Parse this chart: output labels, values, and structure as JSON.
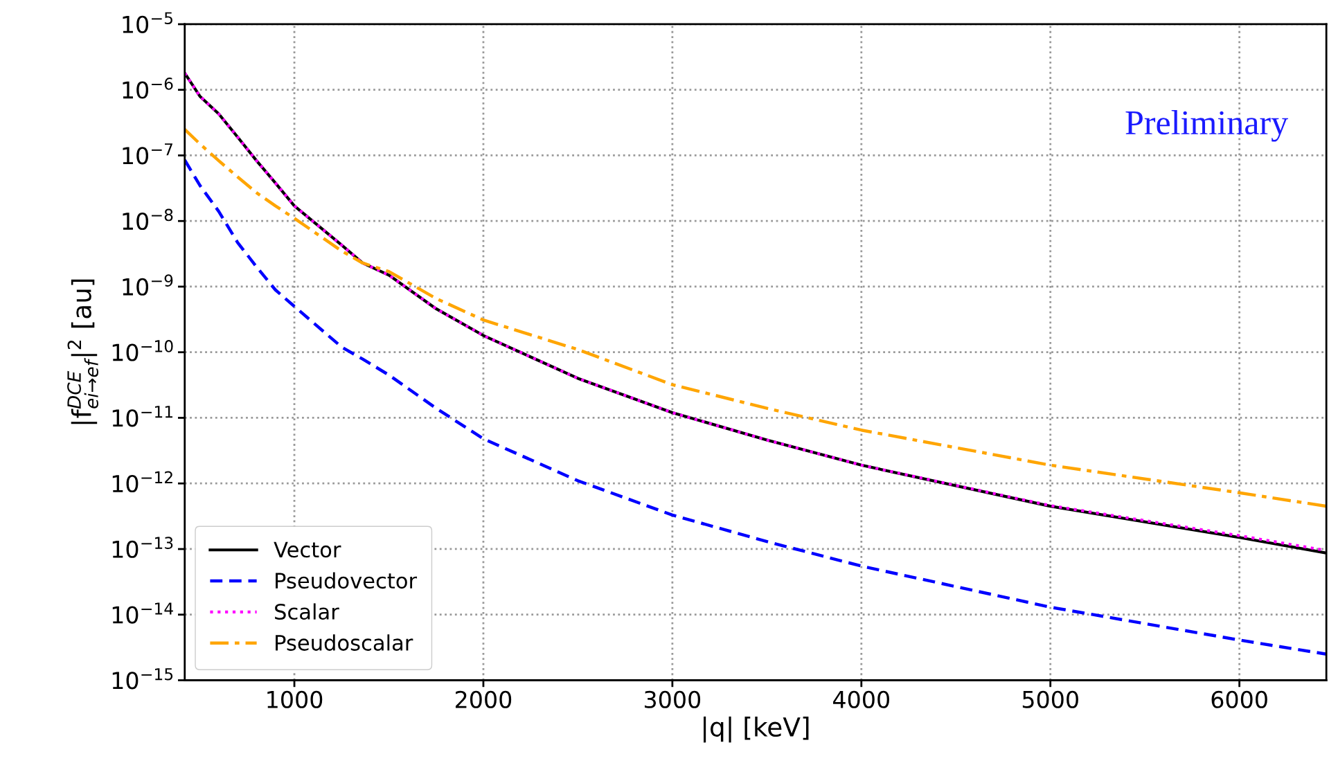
{
  "chart_data": {
    "type": "line",
    "xlabel": "|q| [keV]",
    "ylabel": "|f$^{DCE}$$_{ei→ef}$|$^{2}$ [au]",
    "x": [
      420,
      500,
      600,
      700,
      800,
      900,
      1000,
      1250,
      1360,
      1500,
      1750,
      2000,
      2500,
      3000,
      3500,
      4000,
      5000,
      6000,
      6460
    ],
    "series": [
      {
        "name": "Vector",
        "color": "#000000",
        "line_style": "solid",
        "values": [
          1.8e-06,
          8e-07,
          4.3e-07,
          1.9e-07,
          8.3e-08,
          3.8e-08,
          1.7e-08,
          4.3e-09,
          2.3e-09,
          1.5e-09,
          4.6e-10,
          1.8e-10,
          4e-11,
          1.2e-11,
          4.6e-12,
          1.9e-12,
          4.5e-13,
          1.5e-13,
          8.7e-14
        ]
      },
      {
        "name": "Pseudovector",
        "color": "#0000ff",
        "line_style": "dashed",
        "values": [
          8.5e-08,
          3.5e-08,
          1.4e-08,
          4.7e-09,
          2e-09,
          8.9e-10,
          5e-10,
          1.2e-10,
          7.9e-11,
          4.5e-11,
          1.4e-11,
          4.8e-12,
          1.1e-12,
          3.3e-13,
          1.3e-13,
          5.5e-14,
          1.3e-14,
          4.1e-15,
          2.5e-15
        ]
      },
      {
        "name": "Scalar",
        "color": "#ff00ff",
        "line_style": "dotted",
        "values": [
          1.8e-06,
          8e-07,
          4.3e-07,
          1.9e-07,
          8.3e-08,
          3.8e-08,
          1.7e-08,
          4.3e-09,
          2.3e-09,
          1.5e-09,
          4.6e-10,
          1.8e-10,
          4e-11,
          1.2e-11,
          4.6e-12,
          1.9e-12,
          4.6e-13,
          1.6e-13,
          9.5e-14
        ]
      },
      {
        "name": "Pseudoscalar",
        "color": "#ffa500",
        "line_style": "dashdot",
        "values": [
          2.5e-07,
          1.5e-07,
          8.3e-08,
          4.7e-08,
          2.7e-08,
          1.7e-08,
          1.1e-08,
          3.5e-09,
          2.3e-09,
          1.7e-09,
          6.6e-10,
          3.1e-10,
          1.1e-10,
          3.2e-11,
          1.4e-11,
          6.5e-12,
          1.9e-12,
          7.2e-13,
          4.5e-13
        ]
      }
    ],
    "log": "y",
    "xlim": [
      420,
      6460
    ],
    "xticks": [
      1000,
      2000,
      3000,
      4000,
      5000,
      6000
    ],
    "ylim": [
      1e-15,
      1e-05
    ],
    "yticks": [
      {
        "value": 1e-15,
        "label": "10$^{−15}$"
      },
      {
        "value": 1e-14,
        "label": "10$^{−14}$"
      },
      {
        "value": 1e-13,
        "label": "10$^{−13}$"
      },
      {
        "value": 1e-12,
        "label": "10$^{−12}$"
      },
      {
        "value": 1e-11,
        "label": "10$^{−11}$"
      },
      {
        "value": 1e-10,
        "label": "10$^{−10}$"
      },
      {
        "value": 1e-09,
        "label": "10$^{−9}$"
      },
      {
        "value": 1e-08,
        "label": "10$^{−8}$"
      },
      {
        "value": 1e-07,
        "label": "10$^{−7}$"
      },
      {
        "value": 1e-06,
        "label": "10$^{−6}$"
      },
      {
        "value": 1e-05,
        "label": "10$^{−5}$"
      }
    ],
    "grid": true,
    "legend": "bottom left",
    "annotations": [
      "Preliminary"
    ]
  }
}
